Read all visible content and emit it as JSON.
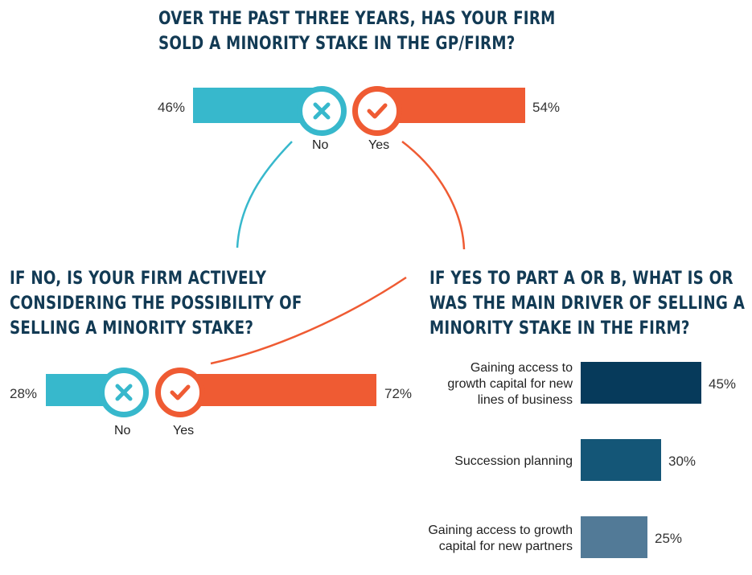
{
  "colors": {
    "no": "#37b8cc",
    "yes": "#ef5b33",
    "heading": "#123a54",
    "driver_bars": [
      "#063a5b",
      "#145677",
      "#527a97"
    ]
  },
  "question_a": {
    "title_line1": "OVER THE PAST THREE YEARS, HAS YOUR FIRM",
    "title_line2": "SOLD A MINORITY STAKE IN THE GP/FIRM?",
    "no_value": "46%",
    "yes_value": "54%",
    "no_label": "No",
    "yes_label": "Yes",
    "no_icon": "x-icon",
    "yes_icon": "check-icon"
  },
  "question_b": {
    "title_line1": "IF NO, IS YOUR FIRM ACTIVELY",
    "title_line2": "CONSIDERING THE POSSIBILITY OF",
    "title_line3": "SELLING A MINORITY STAKE?",
    "no_value": "28%",
    "yes_value": "72%",
    "no_label": "No",
    "yes_label": "Yes",
    "no_icon": "x-icon",
    "yes_icon": "check-icon"
  },
  "question_c": {
    "title_line1": "IF YES TO PART A OR B, WHAT IS OR",
    "title_line2": "WAS THE MAIN DRIVER OF SELLING A",
    "title_line3": "MINORITY STAKE IN THE FIRM?"
  },
  "chart_data": [
    {
      "type": "bar",
      "title": "OVER THE PAST THREE YEARS, HAS YOUR FIRM SOLD A MINORITY STAKE IN THE GP/FIRM?",
      "categories": [
        "No",
        "Yes"
      ],
      "values": [
        46,
        54
      ],
      "value_labels": [
        "46%",
        "54%"
      ]
    },
    {
      "type": "bar",
      "title": "IF NO, IS YOUR FIRM ACTIVELY CONSIDERING THE POSSIBILITY OF SELLING A MINORITY STAKE?",
      "categories": [
        "No",
        "Yes"
      ],
      "values": [
        28,
        72
      ],
      "value_labels": [
        "28%",
        "72%"
      ]
    },
    {
      "type": "bar",
      "title": "IF YES TO PART A OR B, WHAT IS OR WAS THE MAIN DRIVER OF SELLING A MINORITY STAKE IN THE FIRM?",
      "orientation": "horizontal",
      "categories": [
        "Gaining access to\ngrowth capital for new\nlines of business",
        "Succession planning",
        "Gaining access to growth\ncapital for new partners"
      ],
      "values": [
        45,
        30,
        25
      ],
      "value_labels": [
        "45%",
        "30%",
        "25%"
      ]
    }
  ]
}
